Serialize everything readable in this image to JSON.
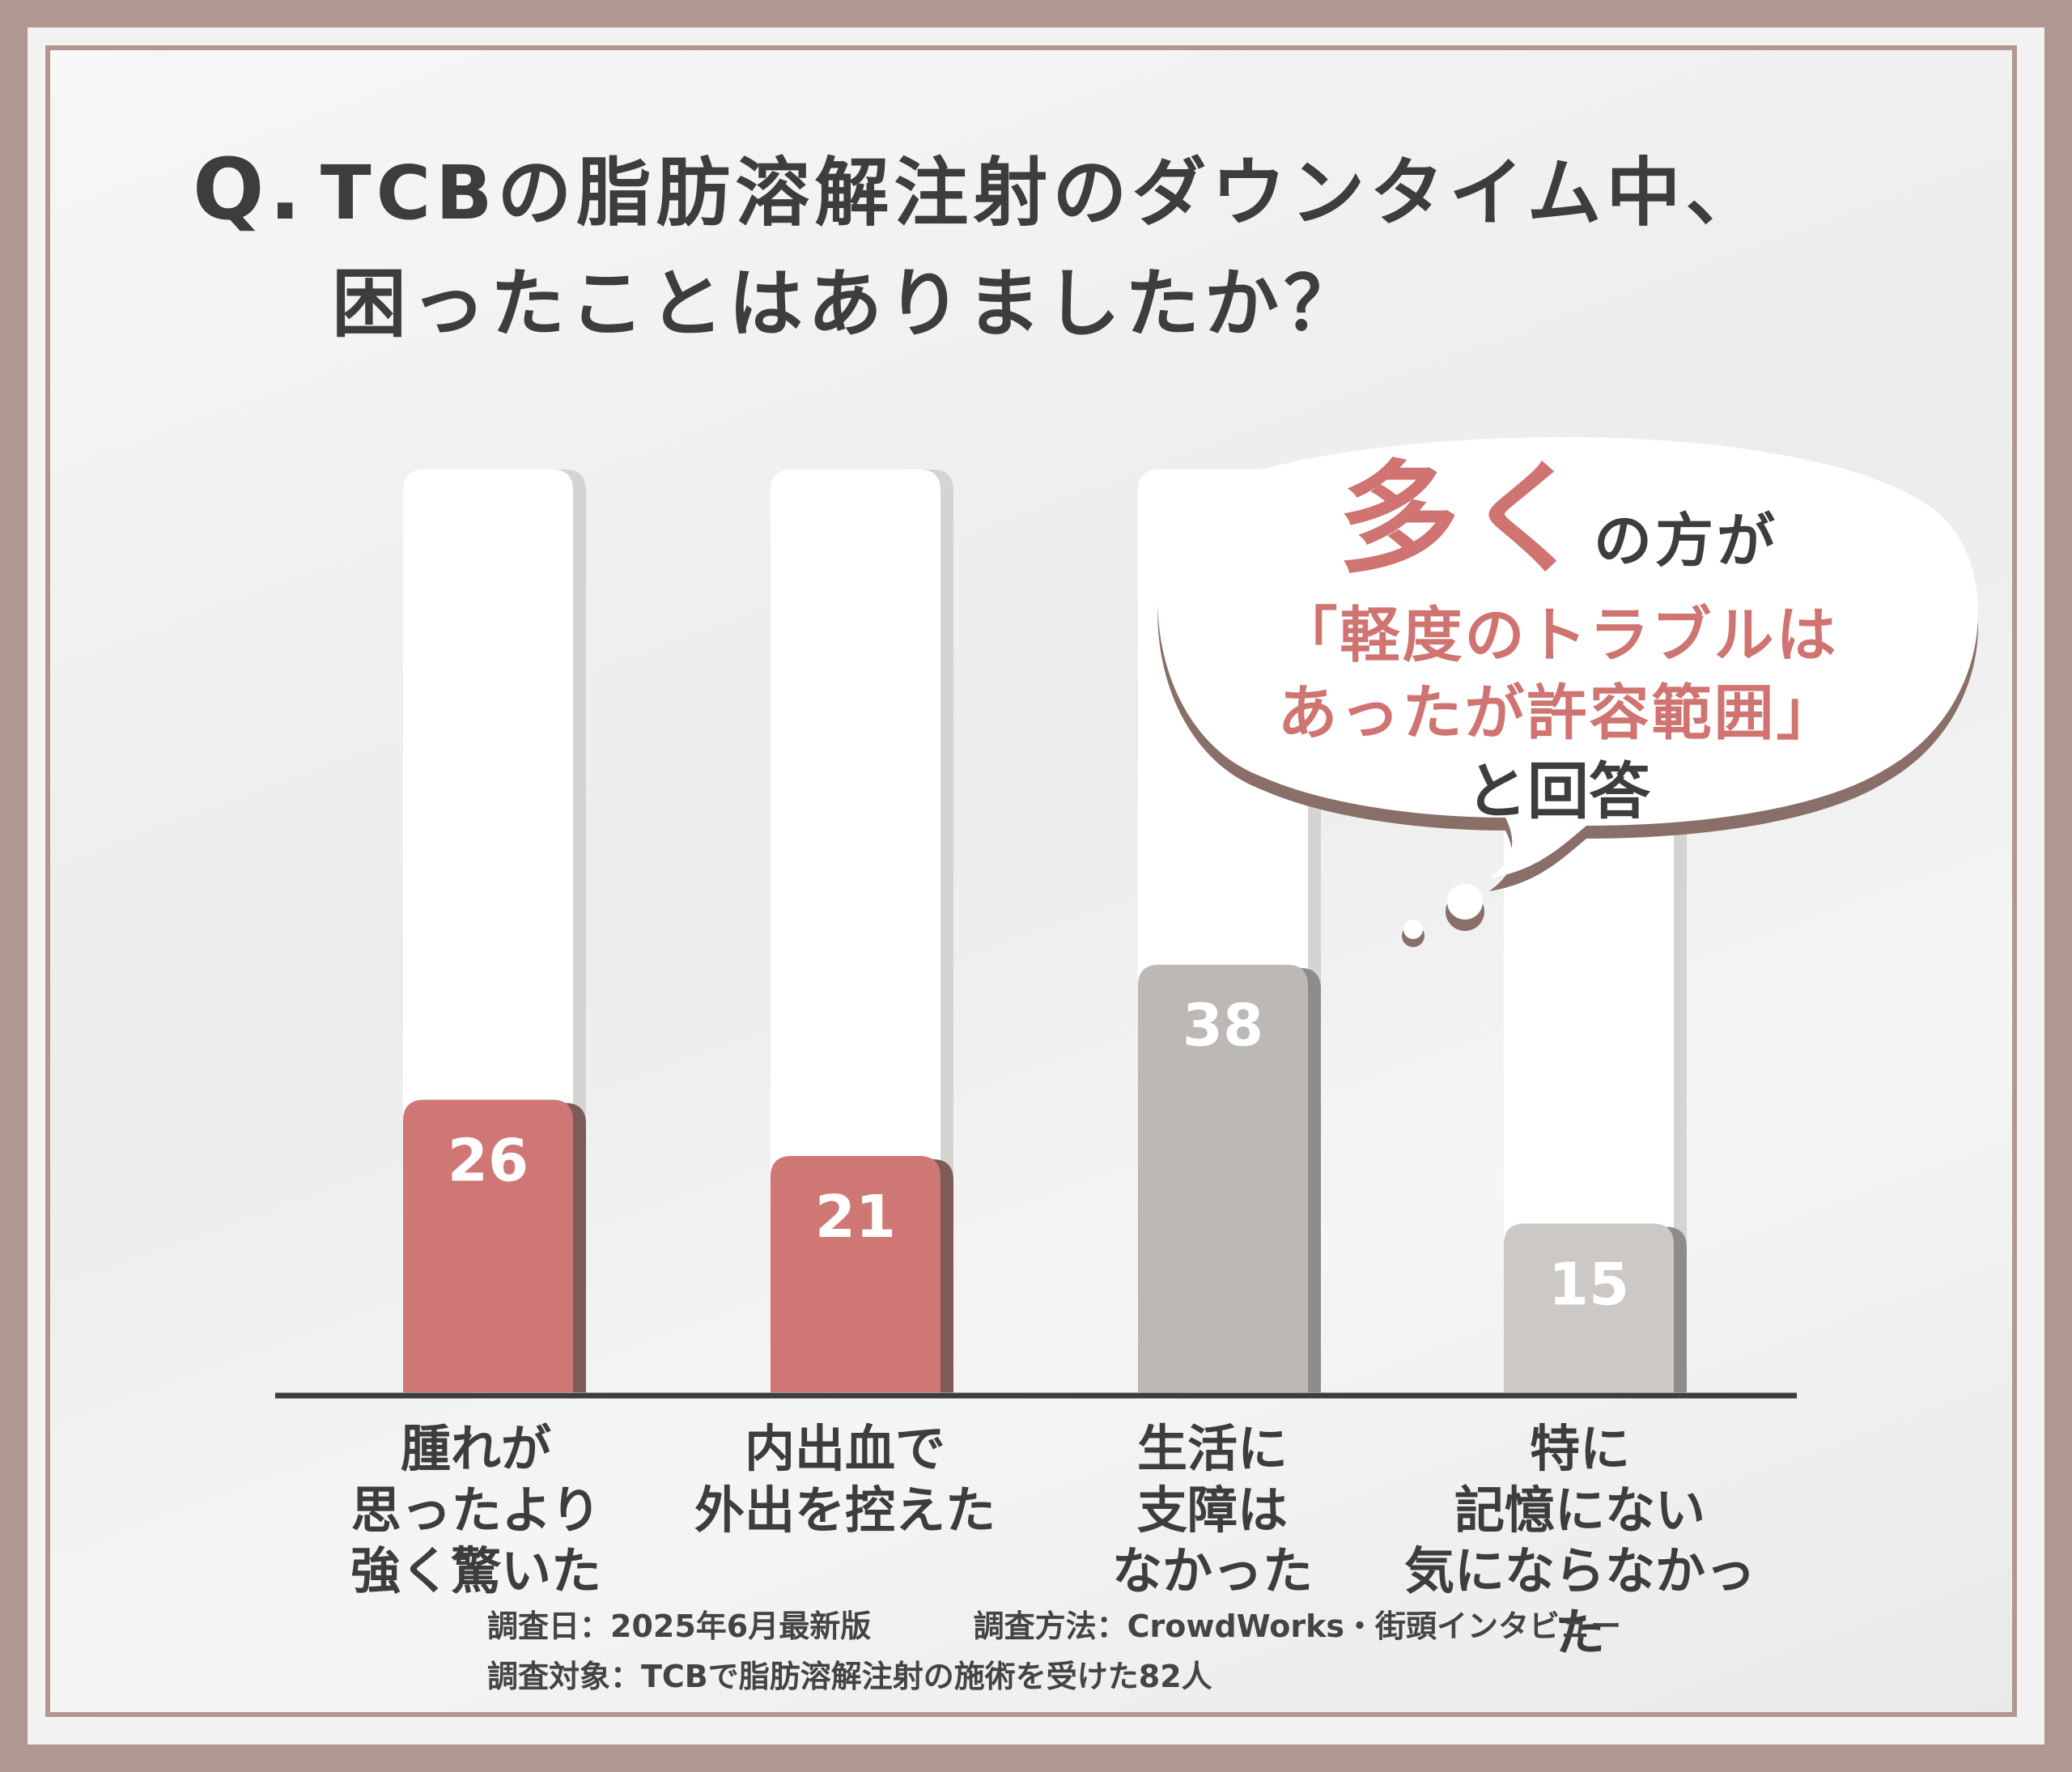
{
  "title": {
    "q_mark": "Q.",
    "line1": "TCBの脂肪溶解注射のダウンタイム中、",
    "line2": "困ったことはありましたか？"
  },
  "bubble": {
    "emphasis": "多く",
    "suffix": "の方が",
    "quote_line1": "「軽度のトラブルは",
    "quote_line2": "あったが許容範囲」",
    "answer": "と回答"
  },
  "chart_data": {
    "type": "bar",
    "categories": [
      "腫れが\n思ったより\n強く驚いた",
      "内出血で\n外出を控えた",
      "生活に\n支障は\nなかった",
      "特に\n記憶にない\n気にならなかった"
    ],
    "values": [
      26,
      21,
      38,
      15
    ],
    "data_labels": [
      "26",
      "21",
      "38",
      "15"
    ],
    "colors": [
      "#cf7774",
      "#cf7774",
      "#bbb8b6",
      "#cbc8c6"
    ],
    "ylim": [
      0,
      82
    ],
    "grid": false
  },
  "footer": {
    "date": "調査日：2025年6月最新版",
    "method": "調査方法：CrowdWorks・街頭インタビュー",
    "subject": "調査対象：TCBで脂肪溶解注射の施術を受けた82人"
  },
  "colors": {
    "frame": "#b09891",
    "accent": "#cf7471",
    "text": "#3d3d3d"
  }
}
